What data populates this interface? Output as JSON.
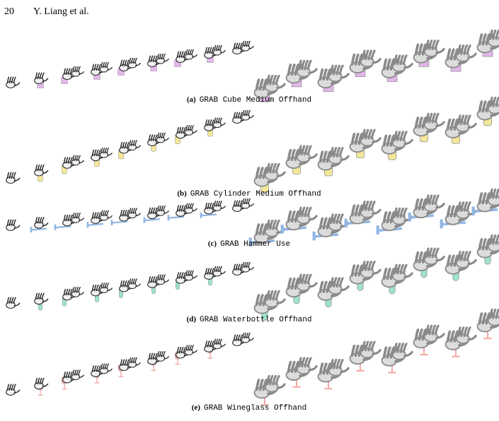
{
  "header": {
    "page_number": "20",
    "authors": "Y. Liang et al."
  },
  "figure": {
    "panels": [
      {
        "label": "(a)",
        "caption": "GRAB Cube Medium Offhand"
      },
      {
        "label": "(b)",
        "caption": "GRAB Cylinder Medium Offhand"
      },
      {
        "label": "(c)",
        "caption": "GRAB Hammer Use"
      },
      {
        "label": "(d)",
        "caption": "GRAB Waterbottle Offhand"
      },
      {
        "label": "(e)",
        "caption": "GRAB Wineglass Offhand"
      }
    ]
  }
}
